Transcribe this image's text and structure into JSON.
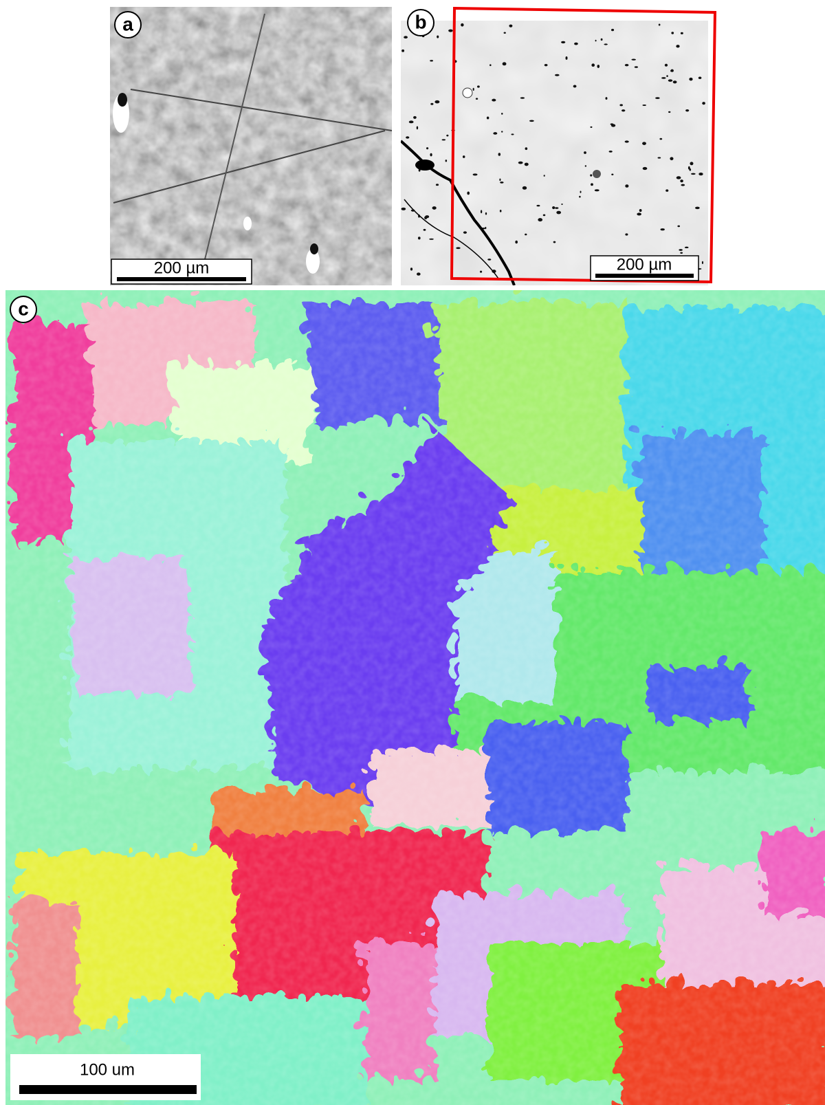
{
  "panels": [
    {
      "label": "a",
      "scale_bar": "200 µm"
    },
    {
      "label": "b",
      "scale_bar": "200 µm"
    },
    {
      "label": "c",
      "scale_bar": "100 um"
    }
  ]
}
